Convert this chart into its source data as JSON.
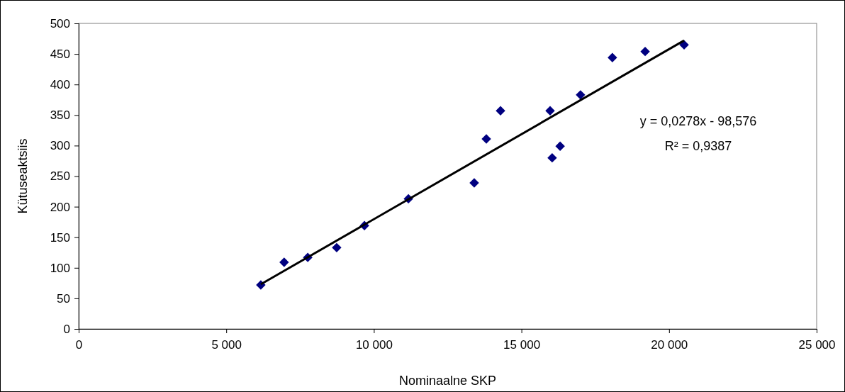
{
  "chart_data": {
    "type": "scatter",
    "xlabel": "Nominaalne SKP",
    "ylabel": "Kütuseaktsiis",
    "xlim": [
      0,
      25000
    ],
    "xticks": [
      0,
      {
        "value": 5000,
        "label": "5 000"
      },
      {
        "value": 10000,
        "label": "10 000"
      },
      {
        "value": 15000,
        "label": "15 000"
      },
      {
        "value": 20000,
        "label": "20 000"
      },
      {
        "value": 25000,
        "label": "25 000"
      }
    ],
    "ylim": [
      0,
      500
    ],
    "yticks": [
      0,
      50,
      100,
      150,
      200,
      250,
      300,
      350,
      400,
      450,
      500
    ],
    "grid": false,
    "marker": "diamond",
    "series": [
      {
        "color": "#000080",
        "x": [
          6170,
          6960,
          7760,
          8740,
          9680,
          11170,
          13400,
          13810,
          14290,
          15970,
          16040,
          16310,
          17000,
          18080,
          19190,
          20510
        ],
        "values": [
          72,
          109,
          117,
          133,
          169,
          213,
          239,
          311,
          357,
          357,
          280,
          299,
          383,
          444,
          454,
          465
        ]
      },
      {
        "type": "line",
        "color": "#000000",
        "line_style": "solid",
        "marker": "none",
        "x": [
          6170,
          20510
        ],
        "values": [
          73,
          472
        ]
      }
    ],
    "annotations": [
      "y = 0,0278x - 98,576",
      "R² = 0,9387"
    ]
  }
}
